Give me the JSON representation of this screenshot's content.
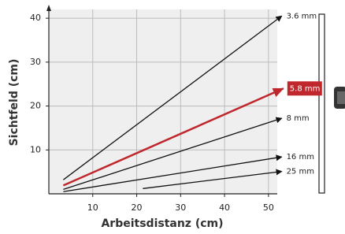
{
  "chart_data": {
    "type": "line",
    "x_label": "Arbeitsdistanz (cm)",
    "y_label": "Sichtfeld (cm)",
    "xlim": [
      0,
      52
    ],
    "ylim": [
      0,
      42
    ],
    "xticks": [
      10,
      20,
      30,
      40,
      50
    ],
    "yticks": [
      10,
      20,
      30,
      40
    ],
    "grid": true,
    "series": [
      {
        "name": "3.6 mm",
        "color": "#111111",
        "x": [
          3.3,
          53
        ],
        "values": [
          3.2,
          40.5
        ]
      },
      {
        "name": "5.8 mm",
        "color": "#c0272d",
        "x": [
          3.3,
          53.4
        ],
        "values": [
          1.9,
          24
        ]
      },
      {
        "name": "8 mm",
        "color": "#111111",
        "x": [
          3.3,
          53
        ],
        "values": [
          1.0,
          17.2
        ]
      },
      {
        "name": "16 mm",
        "color": "#111111",
        "x": [
          3.3,
          53
        ],
        "values": [
          0.5,
          8.4
        ]
      },
      {
        "name": "25 mm",
        "color": "#111111",
        "x": [
          21.4,
          53
        ],
        "values": [
          1.2,
          5.1
        ]
      }
    ]
  }
}
